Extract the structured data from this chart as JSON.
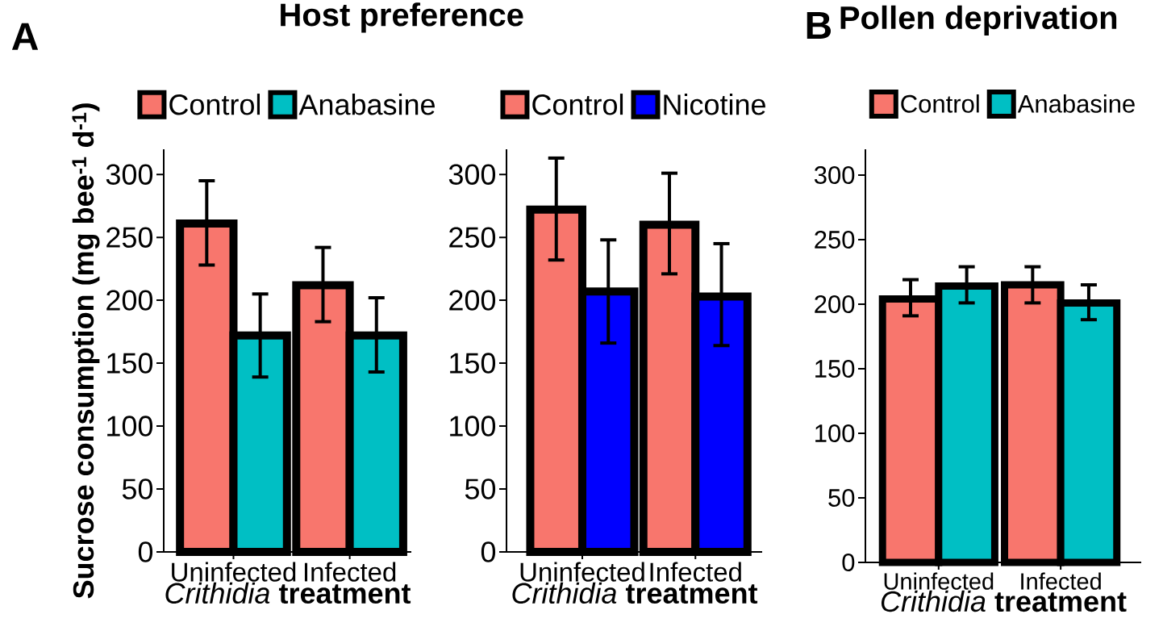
{
  "chart_data": [
    {
      "type": "bar",
      "title": "Host preference",
      "ylabel": "Sucrose consumption (mg bee$^{-1}$ d$^{-1}$)",
      "xlabel": "*Crithidia* **treatment**",
      "categories": [
        "Uninfected",
        "Infected"
      ],
      "series": [
        {
          "name": "Control",
          "color": "#f8766d",
          "values": [
            261,
            212
          ],
          "errors": [
            [
              228,
              295
            ],
            [
              183,
              242
            ]
          ]
        },
        {
          "name": "Anabasine",
          "color": "#00bfc4",
          "values": [
            172,
            172
          ],
          "errors": [
            [
              139,
              205
            ],
            [
              143,
              202
            ]
          ]
        }
      ],
      "ylim": [
        0,
        320
      ],
      "yticks": [
        0,
        50,
        100,
        150,
        200,
        250,
        300
      ],
      "legend": "top",
      "annotations": [
        "A"
      ]
    },
    {
      "type": "bar",
      "xlabel": "*Crithidia* **treatment**",
      "categories": [
        "Uninfected",
        "Infected"
      ],
      "series": [
        {
          "name": "Control",
          "color": "#f8766d",
          "values": [
            272,
            260
          ],
          "errors": [
            [
              232,
              313
            ],
            [
              221,
              301
            ]
          ]
        },
        {
          "name": "Nicotine",
          "color": "#0000ff",
          "values": [
            207,
            203
          ],
          "errors": [
            [
              166,
              248
            ],
            [
              164,
              245
            ]
          ]
        }
      ],
      "ylim": [
        0,
        320
      ],
      "yticks": [
        0,
        50,
        100,
        150,
        200,
        250,
        300
      ],
      "legend": "top"
    },
    {
      "type": "bar",
      "title": "Pollen deprivation",
      "xlabel": "*Crithidia* **treatment**",
      "categories": [
        "Uninfected",
        "Infected"
      ],
      "series": [
        {
          "name": "Control",
          "color": "#f8766d",
          "values": [
            204,
            215
          ],
          "errors": [
            [
              191,
              219
            ],
            [
              201,
              229
            ]
          ]
        },
        {
          "name": "Anabasine",
          "color": "#00bfc4",
          "values": [
            214,
            201
          ],
          "errors": [
            [
              201,
              229
            ],
            [
              188,
              215
            ]
          ]
        }
      ],
      "ylim": [
        0,
        320
      ],
      "yticks": [
        0,
        50,
        100,
        150,
        200,
        250,
        300
      ],
      "legend": "top",
      "annotations": [
        "B"
      ]
    }
  ]
}
